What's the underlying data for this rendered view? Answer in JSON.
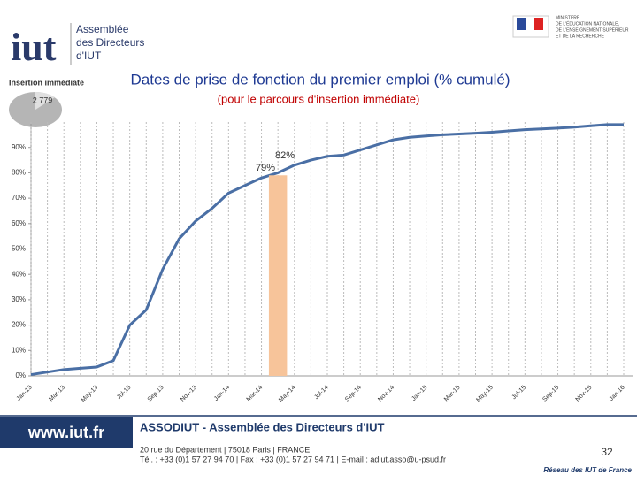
{
  "header": {
    "logo": "iut",
    "logo_text": [
      "Assemblée",
      "des Directeurs",
      "d'IUT"
    ],
    "section": "Insertion immédiate",
    "pie_label": "2 779",
    "ministry": [
      "MINISTÈRE",
      "DE L'ÉDUCATION NATIONALE,",
      "DE L'ENSEIGNEMENT SUPÉRIEUR",
      "ET DE LA RECHERCHE"
    ]
  },
  "chart_data": {
    "type": "line",
    "title": "Dates de prise de fonction du premier emploi (% cumulé)",
    "subtitle": "(pour le parcours d'insertion immédiate)",
    "categories": [
      "Jan-13",
      null,
      "Mar-13",
      null,
      "May-13",
      null,
      "Jul-13",
      null,
      "Sep-13",
      null,
      "Nov-13",
      null,
      "Jan-14",
      null,
      "Mar-14",
      null,
      "May-14",
      null,
      "Jul-14",
      null,
      "Sep-14",
      null,
      "Nov-14",
      null,
      "Jan-15",
      null,
      "Mar-15",
      null,
      "May-15",
      null,
      "Jul-15",
      null,
      "Sep-15",
      null,
      "Nov-15",
      null,
      "Jan-16"
    ],
    "series": [
      {
        "type": "line",
        "color": "#4a6fa5",
        "values": [
          0.5,
          1.5,
          2.5,
          3,
          3.5,
          6,
          20,
          26,
          42,
          54,
          61,
          66,
          72,
          75,
          78,
          80,
          83,
          85,
          86.5,
          87,
          89,
          91,
          93,
          94,
          94.5,
          95,
          95.3,
          95.6,
          96,
          96.5,
          97,
          97.3,
          97.6,
          98,
          98.5,
          99,
          99
        ]
      },
      {
        "type": "bar",
        "color": "#f7c49a",
        "values": [
          null,
          null,
          null,
          null,
          null,
          null,
          null,
          null,
          null,
          null,
          null,
          null,
          null,
          null,
          null,
          79,
          null,
          null,
          null,
          null,
          null,
          null,
          null,
          null,
          null,
          null,
          null,
          null,
          null,
          null,
          null,
          null,
          null,
          null,
          null,
          null,
          null
        ]
      }
    ],
    "annotations": [
      "82%",
      "79%"
    ],
    "ylim": [
      0,
      100
    ],
    "yticks": [
      {
        "value": 0,
        "label": "0%"
      },
      {
        "value": 10,
        "label": "10%"
      },
      {
        "value": 20,
        "label": "20%"
      },
      {
        "value": 30,
        "label": "30%"
      },
      {
        "value": 40,
        "label": "40%"
      },
      {
        "value": 50,
        "label": "50%"
      },
      {
        "value": 60,
        "label": "60%"
      },
      {
        "value": 70,
        "label": "70%"
      },
      {
        "value": 80,
        "label": "80%"
      },
      {
        "value": 90,
        "label": "90%"
      }
    ],
    "grid": "x"
  },
  "footer": {
    "website": "www.iut.fr",
    "org": "ASSODIUT - Assemblée des Directeurs d'IUT",
    "address": "20 rue du Département | 75018 Paris | FRANCE",
    "contact": "Tél. : +33 (0)1 57 27 94 70 | Fax : +33 (0)1 57 27 94 71 | E-mail : adiut.asso@u-psud.fr",
    "page": "32",
    "network": "Réseau des IUT de France"
  }
}
